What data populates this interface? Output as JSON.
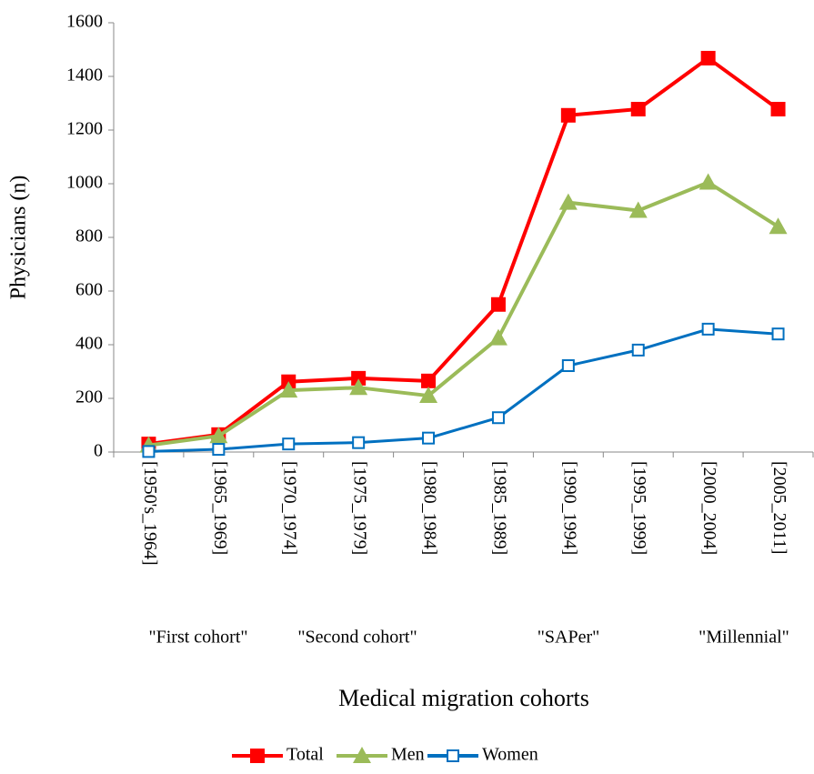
{
  "chart_data": {
    "type": "line",
    "x_label": "Medical migration cohorts",
    "y_label": "Physicians (n)",
    "categories": [
      "[1950's_1964]",
      "[1965_1969]",
      "[1970_1974]",
      "[1975_1979]",
      "[1980_1984]",
      "[1985_1989]",
      "[1990_1994]",
      "[1995_1999]",
      "[2000_2004]",
      "[2005_2011]"
    ],
    "annotations": [
      "\"First cohort\"",
      "\"Second cohort\"",
      "\"SAPer\"",
      "\"Millennial\""
    ],
    "series": [
      {
        "name": "Total",
        "color": "#ff0000",
        "marker": "square",
        "values": [
          30,
          65,
          262,
          275,
          265,
          550,
          1255,
          1278,
          1468,
          1278
        ]
      },
      {
        "name": "Men",
        "color": "#9bbb59",
        "marker": "triangle",
        "values": [
          25,
          60,
          230,
          240,
          210,
          425,
          930,
          900,
          1005,
          840
        ]
      },
      {
        "name": "Women",
        "color": "#0070c0",
        "marker": "open-square",
        "values": [
          2,
          10,
          30,
          35,
          52,
          128,
          322,
          380,
          458,
          440
        ]
      }
    ],
    "ylim": [
      0,
      1600
    ],
    "yticks": [
      0,
      200,
      400,
      600,
      800,
      1000,
      1200,
      1400,
      1600
    ],
    "legend": "bottom"
  }
}
